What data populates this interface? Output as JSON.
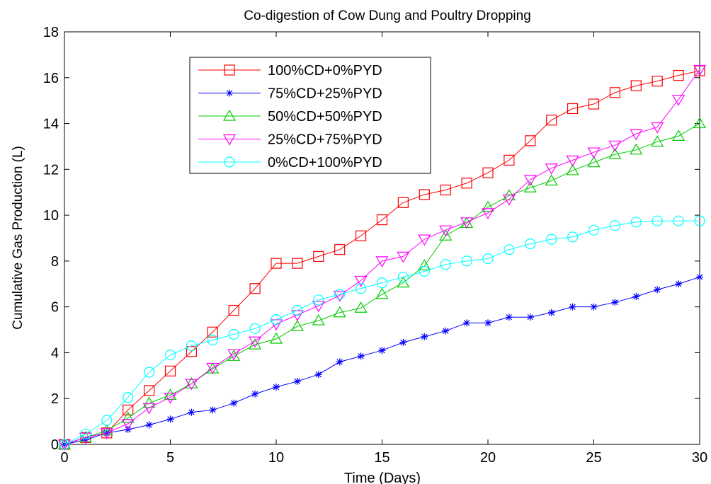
{
  "chart_data": {
    "type": "line",
    "title": "Co-digestion of Cow Dung and Poultry Dropping",
    "xlabel": "Time (Days)",
    "ylabel": "Cumulative Gas Production (L)",
    "xlim": [
      0,
      30
    ],
    "ylim": [
      0,
      18
    ],
    "xticks": [
      0,
      5,
      10,
      15,
      20,
      25,
      30
    ],
    "yticks": [
      0,
      2,
      4,
      6,
      8,
      10,
      12,
      14,
      16,
      18
    ],
    "grid": false,
    "legend_position": "top-left",
    "x": [
      0,
      1,
      2,
      3,
      4,
      5,
      6,
      7,
      8,
      9,
      10,
      11,
      12,
      13,
      14,
      15,
      16,
      17,
      18,
      19,
      20,
      21,
      22,
      23,
      24,
      25,
      26,
      27,
      28,
      29,
      30
    ],
    "series": [
      {
        "name": "100%CD+0%PYD",
        "color": "#ff0000",
        "marker": "square",
        "values": [
          0,
          0.3,
          0.5,
          1.5,
          2.35,
          3.2,
          4.05,
          4.9,
          5.85,
          6.8,
          7.9,
          7.9,
          8.2,
          8.5,
          9.1,
          9.8,
          10.55,
          10.9,
          11.1,
          11.4,
          11.85,
          12.4,
          13.25,
          14.15,
          14.65,
          14.85,
          15.35,
          15.65,
          15.85,
          16.1,
          16.3
        ]
      },
      {
        "name": "75%CD+25%PYD",
        "color": "#0000ff",
        "marker": "asterisk",
        "values": [
          0,
          0.2,
          0.5,
          0.65,
          0.85,
          1.1,
          1.4,
          1.5,
          1.8,
          2.2,
          2.5,
          2.75,
          3.05,
          3.6,
          3.85,
          4.1,
          4.45,
          4.7,
          4.95,
          5.3,
          5.3,
          5.55,
          5.55,
          5.75,
          6.0,
          6.0,
          6.2,
          6.45,
          6.75,
          7.0,
          7.3
        ]
      },
      {
        "name": "50%CD+50%PYD",
        "color": "#00cc00",
        "marker": "triangle-up",
        "values": [
          0,
          0.3,
          0.6,
          1.15,
          1.8,
          2.15,
          2.65,
          3.3,
          3.85,
          4.35,
          4.6,
          5.15,
          5.4,
          5.75,
          5.95,
          6.55,
          7.05,
          7.8,
          9.1,
          9.65,
          10.35,
          10.85,
          11.2,
          11.5,
          11.95,
          12.3,
          12.65,
          12.85,
          13.2,
          13.45,
          14.0
        ]
      },
      {
        "name": "25%CD+75%PYD",
        "color": "#ff00ff",
        "marker": "triangle-down",
        "values": [
          0,
          0.3,
          0.5,
          0.9,
          1.6,
          2.05,
          2.65,
          3.35,
          3.95,
          4.5,
          5.25,
          5.65,
          6.05,
          6.5,
          7.15,
          8.0,
          8.2,
          8.95,
          9.35,
          9.7,
          10.1,
          10.7,
          11.55,
          12.05,
          12.4,
          12.75,
          13.05,
          13.55,
          13.85,
          15.05,
          16.35
        ]
      },
      {
        "name": "0%CD+100%PYD",
        "color": "#00ffff",
        "marker": "circle",
        "values": [
          0,
          0.45,
          1.05,
          2.05,
          3.15,
          3.9,
          4.3,
          4.55,
          4.8,
          5.05,
          5.45,
          5.85,
          6.3,
          6.55,
          6.8,
          7.05,
          7.3,
          7.55,
          7.85,
          8.0,
          8.1,
          8.5,
          8.75,
          8.95,
          9.05,
          9.35,
          9.55,
          9.7,
          9.75,
          9.75,
          9.75
        ]
      }
    ]
  }
}
